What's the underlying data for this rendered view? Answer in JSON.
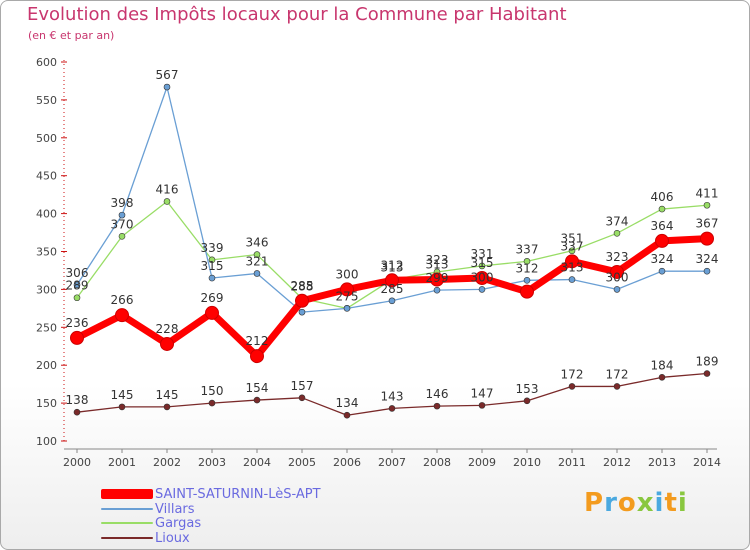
{
  "title": "Evolution des Impôts locaux pour la Commune par Habitant",
  "subtitle": "(en € et par an)",
  "logo": {
    "text": "Proxiti",
    "letters": [
      {
        "ch": "P",
        "color": "#f39b1e"
      },
      {
        "ch": "r",
        "color": "#4aa9e0"
      },
      {
        "ch": "o",
        "color": "#f39b1e"
      },
      {
        "ch": "x",
        "color": "#89c73f"
      },
      {
        "ch": "i",
        "color": "#4aa9e0"
      },
      {
        "ch": "t",
        "color": "#f39b1e"
      },
      {
        "ch": "i",
        "color": "#89c73f"
      }
    ]
  },
  "chart_data": {
    "type": "line",
    "title": "Evolution des Impôts locaux pour la Commune par Habitant",
    "xlabel": "",
    "ylabel": "",
    "ylim": [
      100,
      600
    ],
    "yticks": [
      100,
      150,
      200,
      250,
      300,
      350,
      400,
      450,
      500,
      550,
      600
    ],
    "grid": false,
    "legend_position": "bottom-left",
    "x": [
      2000,
      2001,
      2002,
      2003,
      2004,
      2005,
      2006,
      2007,
      2008,
      2009,
      2010,
      2011,
      2012,
      2013,
      2014
    ],
    "series": [
      {
        "name": "SAINT-SATURNIN-LèS-APT",
        "color": "#ff0000",
        "values": [
          236,
          266,
          228,
          269,
          212,
          285,
          300,
          312,
          313,
          315,
          297,
          337,
          323,
          364,
          367
        ],
        "labels": [
          "236",
          "266",
          "228",
          "269",
          "212",
          "285",
          "300",
          "312",
          "313",
          "315",
          "",
          "337",
          "323",
          "364",
          "367"
        ]
      },
      {
        "name": "Villars",
        "color": "#6a9fd4",
        "values": [
          306,
          398,
          567,
          315,
          321,
          270,
          275,
          285,
          299,
          300,
          312,
          313,
          300,
          324,
          324
        ],
        "labels": [
          "306",
          "398",
          "567",
          "315",
          "321",
          "",
          "",
          "285",
          "299",
          "300",
          "312",
          "313",
          "300",
          "324",
          "324"
        ]
      },
      {
        "name": "Gargas",
        "color": "#99dd66",
        "values": [
          289,
          370,
          416,
          339,
          346,
          288,
          275,
          313,
          323,
          331,
          337,
          351,
          374,
          406,
          411
        ],
        "labels": [
          "289",
          "370",
          "416",
          "339",
          "346",
          "288",
          "275",
          "313",
          "323",
          "331",
          "337",
          "351",
          "374",
          "406",
          "411"
        ]
      },
      {
        "name": "Lioux",
        "color": "#7a2a2a",
        "values": [
          138,
          145,
          145,
          150,
          154,
          157,
          134,
          143,
          146,
          147,
          153,
          172,
          172,
          184,
          189
        ],
        "labels": [
          "138",
          "145",
          "145",
          "150",
          "154",
          "157",
          "134",
          "143",
          "146",
          "147",
          "153",
          "172",
          "172",
          "184",
          "189"
        ]
      }
    ]
  }
}
